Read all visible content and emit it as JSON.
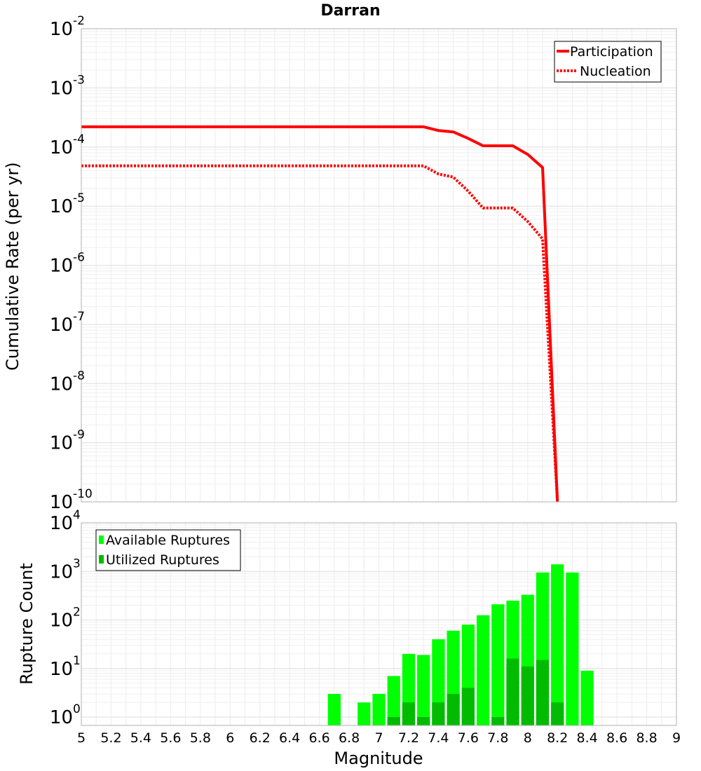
{
  "chart_data": [
    {
      "type": "line",
      "title": "Darran",
      "xlabel": "Magnitude",
      "ylabel": "Cumulative Rate (per yr)",
      "yscale": "log",
      "xlim": [
        5,
        9
      ],
      "ylim_exp": [
        -10,
        -2
      ],
      "y_tick_labels": [
        {
          "base": "10",
          "exp": "-2"
        },
        {
          "base": "10",
          "exp": "-3"
        },
        {
          "base": "10",
          "exp": "-4"
        },
        {
          "base": "10",
          "exp": "-5"
        },
        {
          "base": "10",
          "exp": "-6"
        },
        {
          "base": "10",
          "exp": "-7"
        },
        {
          "base": "10",
          "exp": "-8"
        },
        {
          "base": "10",
          "exp": "-9"
        },
        {
          "base": "10",
          "exp": "-10"
        }
      ],
      "legend": [
        "Participation",
        "Nucleation"
      ],
      "series": [
        {
          "name": "Participation",
          "style": "solid",
          "color": "#ff0000",
          "x": [
            5.0,
            7.3,
            7.4,
            7.5,
            7.6,
            7.7,
            7.8,
            7.9,
            8.0,
            8.1,
            8.2
          ],
          "y": [
            0.00022,
            0.00022,
            0.00019,
            0.00018,
            0.00014,
            0.000105,
            0.000105,
            0.000105,
            7.5e-05,
            4.5e-05,
            1e-10
          ]
        },
        {
          "name": "Nucleation",
          "style": "dotted",
          "color": "#ff0000",
          "x": [
            5.0,
            7.3,
            7.4,
            7.5,
            7.6,
            7.7,
            7.8,
            7.9,
            8.0,
            8.1,
            8.2
          ],
          "y": [
            4.8e-05,
            4.8e-05,
            3.5e-05,
            3.1e-05,
            1.8e-05,
            9.3e-06,
            9.3e-06,
            9.3e-06,
            5.5e-06,
            2.8e-06,
            1e-10
          ]
        }
      ]
    },
    {
      "type": "bar",
      "xlabel": "Magnitude",
      "ylabel": "Rupture Count",
      "yscale": "log",
      "xlim": [
        5,
        9
      ],
      "ylim_exp": [
        0,
        4
      ],
      "x_tick_labels": [
        "5",
        "5.2",
        "5.4",
        "5.6",
        "5.8",
        "6",
        "6.2",
        "6.4",
        "6.6",
        "6.8",
        "7",
        "7.2",
        "7.4",
        "7.6",
        "7.8",
        "8",
        "8.2",
        "8.4",
        "8.6",
        "8.8",
        "9"
      ],
      "y_tick_labels": [
        {
          "base": "10",
          "exp": "0"
        },
        {
          "base": "10",
          "exp": "1"
        },
        {
          "base": "10",
          "exp": "2"
        },
        {
          "base": "10",
          "exp": "3"
        },
        {
          "base": "10",
          "exp": "4"
        }
      ],
      "legend": [
        "Available Ruptures",
        "Utilized Ruptures"
      ],
      "colors": {
        "available": "#00ff00",
        "utilized": "#00bb00"
      },
      "bin_width": 0.1,
      "bins": [
        {
          "x": 6.7,
          "available": 3,
          "utilized": 0
        },
        {
          "x": 6.9,
          "available": 2,
          "utilized": 0
        },
        {
          "x": 7.0,
          "available": 3,
          "utilized": 0
        },
        {
          "x": 7.1,
          "available": 7,
          "utilized": 1
        },
        {
          "x": 7.2,
          "available": 20,
          "utilized": 2
        },
        {
          "x": 7.3,
          "available": 19,
          "utilized": 1
        },
        {
          "x": 7.4,
          "available": 40,
          "utilized": 2
        },
        {
          "x": 7.5,
          "available": 60,
          "utilized": 3
        },
        {
          "x": 7.6,
          "available": 80,
          "utilized": 4
        },
        {
          "x": 7.7,
          "available": 125,
          "utilized": 0
        },
        {
          "x": 7.8,
          "available": 210,
          "utilized": 1
        },
        {
          "x": 7.9,
          "available": 250,
          "utilized": 16
        },
        {
          "x": 8.0,
          "available": 330,
          "utilized": 11
        },
        {
          "x": 8.1,
          "available": 950,
          "utilized": 15
        },
        {
          "x": 8.2,
          "available": 1400,
          "utilized": 2
        },
        {
          "x": 8.3,
          "available": 950,
          "utilized": 0
        },
        {
          "x": 8.4,
          "available": 9,
          "utilized": 0
        }
      ]
    }
  ]
}
